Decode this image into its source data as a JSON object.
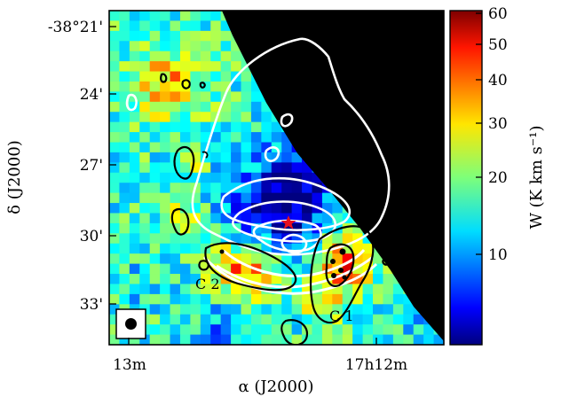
{
  "chart_data": {
    "type": "heatmap",
    "title": "",
    "xlabel": "α (J2000)",
    "ylabel": "δ (J2000)",
    "x_ticks": [
      "13m",
      "17h12m"
    ],
    "y_ticks": [
      "-38°21'",
      "24'",
      "27'",
      "30'",
      "33'"
    ],
    "colorbar": {
      "label": "W (K km s⁻¹)",
      "scale": "log",
      "range": [
        5,
        60
      ],
      "ticks": [
        "10",
        "20",
        "30",
        "40",
        "50",
        "60"
      ],
      "colormap": "jet"
    },
    "annotations": [
      "C 2",
      "C 1"
    ],
    "markers": [
      {
        "symbol": "star",
        "color": "#e8101e"
      }
    ],
    "contours": {
      "white": "continuum",
      "black": "line"
    },
    "beam": true,
    "masked_region_color": "#000000"
  }
}
